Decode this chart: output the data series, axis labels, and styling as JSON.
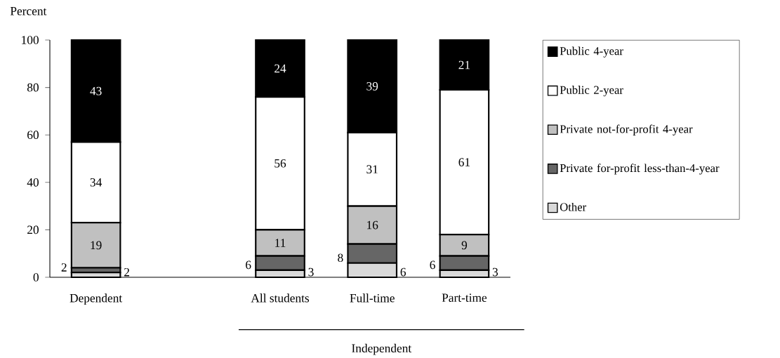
{
  "chart_data": {
    "type": "bar",
    "stacked": true,
    "ylabel": "Percent",
    "categories": [
      "Dependent",
      null,
      "All students",
      "Full-time",
      "Part-time"
    ],
    "series": [
      {
        "name": "Other",
        "color": "#d9d9d9",
        "values": [
          2,
          null,
          3,
          6,
          3
        ]
      },
      {
        "name": "Private for-profit less-than-4-year",
        "color": "#666666",
        "values": [
          2,
          null,
          6,
          8,
          6
        ]
      },
      {
        "name": "Private not-for-profit 4-year",
        "color": "#c0c0c0",
        "values": [
          19,
          null,
          11,
          16,
          9
        ]
      },
      {
        "name": "Public 2-year",
        "color": "#ffffff",
        "values": [
          34,
          null,
          56,
          31,
          61
        ]
      },
      {
        "name": "Public 4-year",
        "color": "#000000",
        "values": [
          43,
          null,
          24,
          39,
          21
        ]
      }
    ],
    "ylim": [
      0,
      100
    ],
    "yticks": [
      0,
      20,
      40,
      60,
      80,
      100
    ],
    "data_labels": true,
    "legend": "right",
    "grid": false,
    "annotations": [
      "Independent"
    ]
  }
}
